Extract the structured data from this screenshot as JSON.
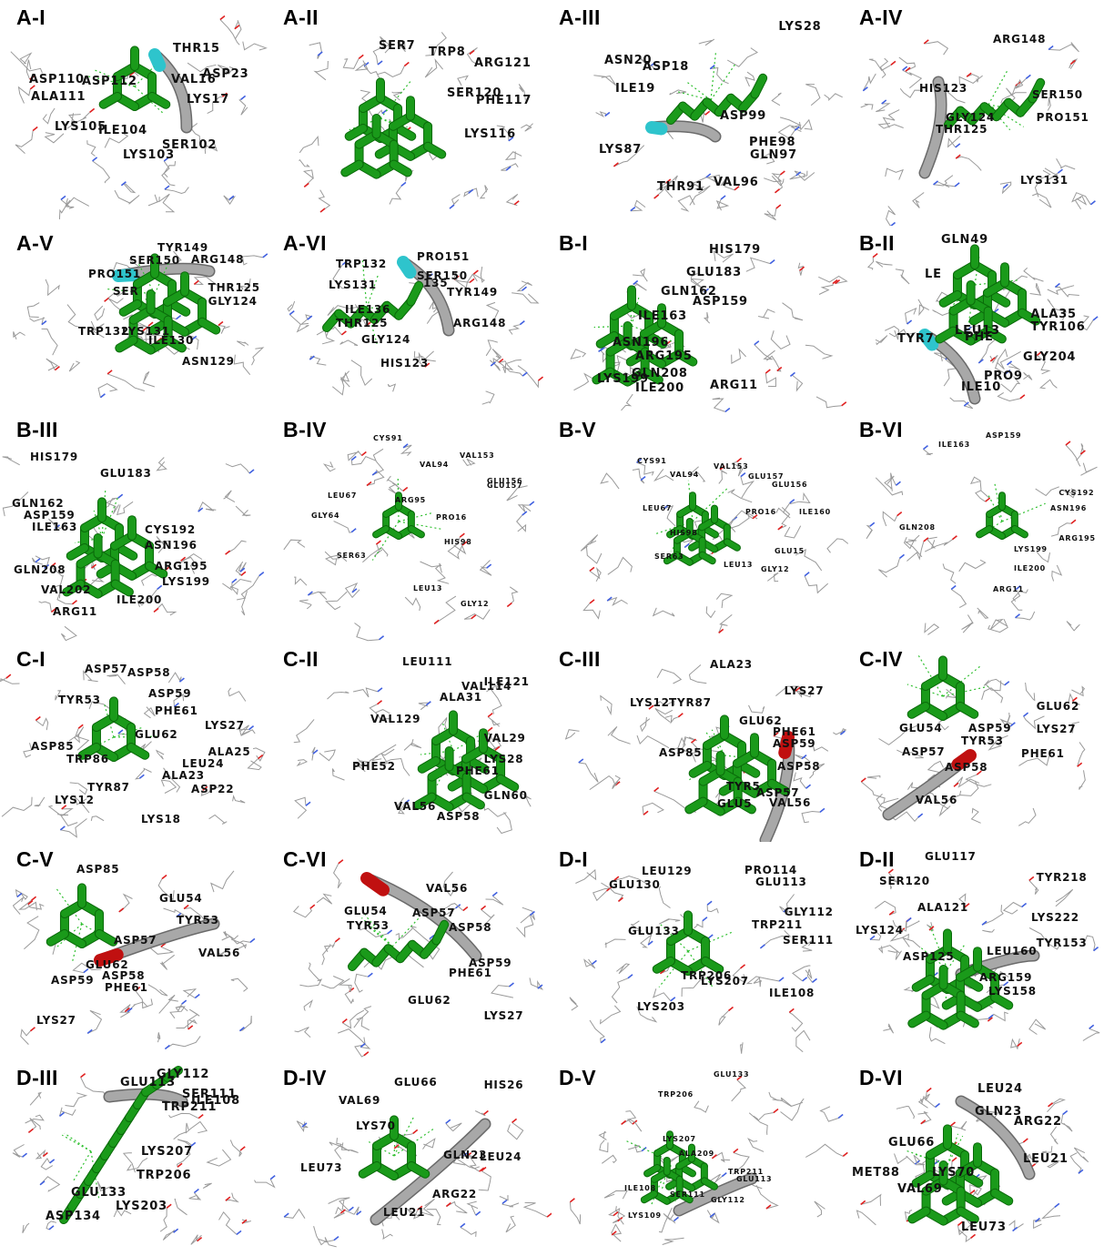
{
  "colors": {
    "ligand": "#1a9a1a",
    "ligand_dark": "#0a6a0a",
    "helix_cyan": "#2ec4cc",
    "helix_red": "#c01010",
    "backbone": "#a8a8a8",
    "wire": "#9a9a9a",
    "oxygen": "#e02020",
    "nitrogen": "#4060e0",
    "hbond": "#30c030",
    "label": "#111111"
  },
  "panels": [
    {
      "title": "A-I",
      "ribbon": "cyan",
      "labels": [
        "THR15",
        "ASP23",
        "ASP110",
        "ALA111",
        "ASP112",
        "VAL16",
        "LYS17",
        "LYS105",
        "ILE104",
        "SER102",
        "LYS103"
      ]
    },
    {
      "title": "A-II",
      "ribbon": "none",
      "labels": [
        "SER7",
        "TRP8",
        "ARG121",
        "SER120",
        "PHE117",
        "LYS116"
      ]
    },
    {
      "title": "A-III",
      "ribbon": "cyan",
      "labels": [
        "LYS28",
        "ASN20",
        "ASP18",
        "ILE19",
        "ASP99",
        "PHE98",
        "GLN97",
        "LYS87",
        "THR91",
        "VAL96"
      ]
    },
    {
      "title": "A-IV",
      "ribbon": "grey",
      "labels": [
        "ARG148",
        "HIS123",
        "SER150",
        "PRO151",
        "GLY124",
        "THR125",
        "LYS131"
      ]
    },
    {
      "title": "A-V",
      "ribbon": "cyan",
      "labels": [
        "TYR149",
        "SER150",
        "ARG148",
        "PRO151",
        "THR125",
        "SER",
        "GLY124",
        "TRP132",
        "LYS131",
        "ILE130",
        "ASN129"
      ]
    },
    {
      "title": "A-VI",
      "ribbon": "cyan",
      "labels": [
        "PRO151",
        "TRP132",
        "SER150",
        "135",
        "LYS131",
        "TYR149",
        "ILE136",
        "ARG148",
        "THR125",
        "GLY124",
        "HIS123"
      ]
    },
    {
      "title": "B-I",
      "ribbon": "none",
      "labels": [
        "HIS179",
        "GLU183",
        "GLN162",
        "ASP159",
        "ILE163",
        "ASN196",
        "ARG195",
        "GLN208",
        "LYS199",
        "ILE200",
        "ARG11"
      ]
    },
    {
      "title": "B-II",
      "ribbon": "cyan",
      "labels": [
        "GLN49",
        "LE",
        "ALA35",
        "TYR106",
        "TYR7",
        "LEU13",
        "PHE",
        "GLY204",
        "PRO9",
        "ILE10"
      ]
    },
    {
      "title": "B-III",
      "ribbon": "none",
      "labels": [
        "HIS179",
        "GLU183",
        "GLN162",
        "ASP159",
        "ILE163",
        "CYS192",
        "ASN196",
        "ARG195",
        "GLN208",
        "LYS199",
        "VAL202",
        "ILE200",
        "ARG11"
      ]
    },
    {
      "title": "B-IV",
      "ribbon": "none",
      "labels": [
        "CYS91",
        "VAL153",
        "VAL94",
        "GLU156",
        "GLU157",
        "LEU67",
        "PRO16",
        "GLY64",
        "ARG95",
        "HIS98",
        "SER63",
        "LEU13",
        "GLY12"
      ]
    },
    {
      "title": "B-V",
      "ribbon": "none",
      "labels": [
        "CYS91",
        "VAL153",
        "VAL94",
        "GLU157",
        "GLU156",
        "LEU67",
        "PRO16",
        "ILE160",
        "HIS98",
        "GLU15",
        "SER63",
        "LEU13",
        "GLY12"
      ]
    },
    {
      "title": "B-VI",
      "ribbon": "none",
      "labels": [
        "ILE163",
        "ASP159",
        "CYS192",
        "ASN196",
        "GLN208",
        "ARG195",
        "LYS199",
        "ILE200",
        "ARG11"
      ]
    },
    {
      "title": "C-I",
      "ribbon": "none",
      "labels": [
        "ASP57",
        "ASP58",
        "ASP59",
        "TYR53",
        "PHE61",
        "LYS27",
        "GLU62",
        "ALA25",
        "ASP85",
        "TRP86",
        "LEU24",
        "ALA23",
        "TYR87",
        "ASP22",
        "LYS12",
        "LYS18"
      ]
    },
    {
      "title": "C-II",
      "ribbon": "none",
      "labels": [
        "LEU111",
        "VAL114",
        "ILE121",
        "ALA31",
        "VAL129",
        "VAL29",
        "LYS28",
        "PHE52",
        "PHE61",
        "GLN60",
        "VAL56",
        "ASP58"
      ]
    },
    {
      "title": "C-III",
      "ribbon": "red",
      "labels": [
        "ALA23",
        "LYS27",
        "LYS12",
        "TYR87",
        "GLU62",
        "PHE61",
        "ASP59",
        "ASP85",
        "ASP58",
        "TYR5",
        "ASP57",
        "VAL56",
        "GLU5"
      ]
    },
    {
      "title": "C-IV",
      "ribbon": "red",
      "labels": [
        "GLU62",
        "LYS27",
        "GLU54",
        "ASP59",
        "ASP57",
        "TYR53",
        "PHE61",
        "ASP58",
        "VAL56"
      ]
    },
    {
      "title": "C-V",
      "ribbon": "red",
      "labels": [
        "ASP85",
        "GLU54",
        "TYR53",
        "ASP57",
        "VAL56",
        "GLU62",
        "ASP58",
        "ASP59",
        "PHE61",
        "LYS27"
      ]
    },
    {
      "title": "C-VI",
      "ribbon": "red",
      "labels": [
        "VAL56",
        "GLU54",
        "ASP57",
        "TYR53",
        "ASP58",
        "ASP59",
        "PHE61",
        "GLU62",
        "LYS27"
      ]
    },
    {
      "title": "D-I",
      "ribbon": "none",
      "labels": [
        "LEU129",
        "PRO114",
        "GLU113",
        "GLU130",
        "GLY112",
        "GLU133",
        "TRP211",
        "SER111",
        "TRP206",
        "LYS207",
        "ILE108",
        "LYS203"
      ]
    },
    {
      "title": "D-II",
      "ribbon": "none",
      "labels": [
        "GLU117",
        "TYR218",
        "SER120",
        "ALA121",
        "LYS222",
        "LYS124",
        "LEU160",
        "TYR153",
        "ASP125",
        "ARG159",
        "LYS158"
      ]
    },
    {
      "title": "D-III",
      "ribbon": "grey",
      "labels": [
        "GLY112",
        "GLU113",
        "SER111",
        "ILE108",
        "TRP211",
        "LYS207",
        "TRP206",
        "GLU133",
        "LYS203",
        "ASP134"
      ]
    },
    {
      "title": "D-IV",
      "ribbon": "grey",
      "labels": [
        "GLU66",
        "VAL69",
        "HIS26",
        "LYS70",
        "GLN23",
        "LEU24",
        "LEU73",
        "ARG22",
        "LEU21"
      ]
    },
    {
      "title": "D-V",
      "ribbon": "grey",
      "labels": [
        "GLU133",
        "TRP206",
        "LYS207",
        "ALA209",
        "TRP211",
        "GLU113",
        "ILE108",
        "SER111",
        "GLY112",
        "LYS109"
      ]
    },
    {
      "title": "D-VI",
      "ribbon": "grey",
      "labels": [
        "LEU24",
        "GLN23",
        "ARG22",
        "GLU66",
        "LEU21",
        "MET88",
        "LYS70",
        "VAL69",
        "LEU73"
      ]
    }
  ]
}
